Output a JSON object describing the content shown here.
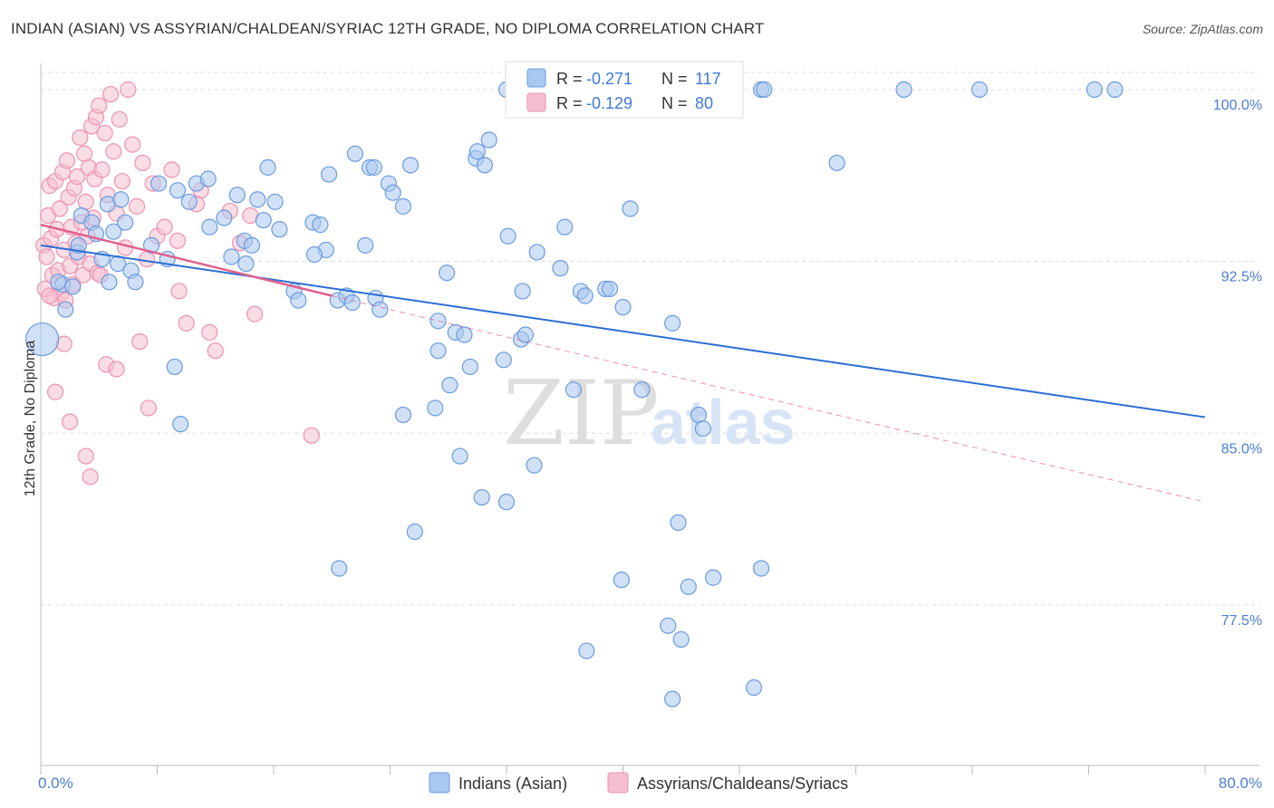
{
  "title": "INDIAN (ASIAN) VS ASSYRIAN/CHALDEAN/SYRIAC 12TH GRADE, NO DIPLOMA CORRELATION CHART",
  "source": "Source: ZipAtlas.com",
  "watermark": {
    "zip": "ZIP",
    "atlas": "atlas"
  },
  "colors": {
    "blue_fill": "#a9c8f0",
    "blue_stroke": "#6b9be0",
    "blue_line": "#2a6fd1",
    "pink_fill": "#f6bfd0",
    "pink_stroke": "#ee92b0",
    "pink_line": "#e0608c",
    "grid": "#dcdcdc",
    "tick_text": "#4a7fd6"
  },
  "legend": {
    "blue": {
      "r_label": "R = ",
      "r_value": "-0.271",
      "n_label": "N = ",
      "n_value": "117"
    },
    "pink": {
      "r_label": "R = ",
      "r_value": "-0.129",
      "n_label": "N = ",
      "n_value": "80"
    }
  },
  "chart_data": {
    "type": "scatter",
    "title": "INDIAN (ASIAN) VS ASSYRIAN/CHALDEAN/SYRIAC 12TH GRADE, NO DIPLOMA CORRELATION CHART",
    "xlabel": "",
    "ylabel": "12th Grade, No Diploma",
    "xlim": [
      0,
      80
    ],
    "ylim": [
      70.5,
      101.3
    ],
    "x_tick_labels": [
      "0.0%",
      "80.0%"
    ],
    "y_ticks": [
      77.5,
      85.0,
      92.5,
      100.0
    ],
    "y_tick_labels": [
      "77.5%",
      "85.0%",
      "92.5%",
      "100.0%"
    ],
    "grid": true,
    "legend_position": "bottom",
    "series": [
      {
        "name": "Indians (Asian)",
        "trend": {
          "x": [
            0,
            80
          ],
          "y": [
            93.2,
            85.7
          ],
          "style": "solid"
        },
        "points": [
          [
            0.1,
            89.1
          ],
          [
            1.5,
            91.5
          ],
          [
            2.5,
            92.9
          ],
          [
            2.8,
            94.5
          ],
          [
            3.5,
            94.2
          ],
          [
            3.8,
            93.7
          ],
          [
            4.2,
            92.6
          ],
          [
            4.6,
            95.0
          ],
          [
            5.5,
            95.2
          ],
          [
            5.3,
            92.4
          ],
          [
            6.2,
            92.1
          ],
          [
            6.5,
            91.6
          ],
          [
            5.8,
            94.2
          ],
          [
            2.6,
            93.2
          ],
          [
            1.7,
            90.4
          ],
          [
            7.6,
            93.2
          ],
          [
            8.7,
            92.6
          ],
          [
            9.4,
            95.6
          ],
          [
            10.2,
            95.1
          ],
          [
            10.7,
            95.9
          ],
          [
            11.5,
            96.1
          ],
          [
            11.6,
            94.0
          ],
          [
            12.6,
            94.4
          ],
          [
            13.1,
            92.7
          ],
          [
            13.5,
            95.4
          ],
          [
            14.0,
            93.4
          ],
          [
            14.5,
            93.2
          ],
          [
            14.9,
            95.2
          ],
          [
            15.3,
            94.3
          ],
          [
            15.6,
            96.6
          ],
          [
            16.4,
            93.9
          ],
          [
            16.1,
            95.1
          ],
          [
            17.4,
            91.2
          ],
          [
            17.7,
            90.8
          ],
          [
            18.7,
            94.2
          ],
          [
            19.2,
            94.1
          ],
          [
            19.6,
            93.0
          ],
          [
            19.8,
            96.3
          ],
          [
            20.4,
            90.8
          ],
          [
            21.0,
            91.0
          ],
          [
            21.4,
            90.7
          ],
          [
            21.6,
            97.2
          ],
          [
            22.3,
            93.2
          ],
          [
            22.6,
            96.6
          ],
          [
            22.9,
            96.6
          ],
          [
            23.0,
            90.9
          ],
          [
            23.9,
            95.9
          ],
          [
            24.2,
            95.5
          ],
          [
            24.9,
            94.9
          ],
          [
            25.4,
            96.7
          ],
          [
            27.3,
            89.9
          ],
          [
            27.3,
            88.6
          ],
          [
            27.9,
            92.0
          ],
          [
            28.5,
            89.4
          ],
          [
            29.1,
            89.3
          ],
          [
            29.5,
            87.9
          ],
          [
            29.9,
            97.0
          ],
          [
            30.0,
            97.3
          ],
          [
            30.5,
            96.7
          ],
          [
            30.8,
            97.8
          ],
          [
            31.8,
            88.2
          ],
          [
            32.1,
            93.6
          ],
          [
            33.0,
            89.1
          ],
          [
            33.3,
            89.3
          ],
          [
            34.1,
            92.9
          ],
          [
            35.7,
            92.2
          ],
          [
            36.0,
            94.0
          ],
          [
            37.1,
            91.2
          ],
          [
            37.4,
            91.0
          ],
          [
            38.8,
            91.3
          ],
          [
            39.1,
            91.3
          ],
          [
            40.5,
            94.8
          ],
          [
            41.3,
            86.9
          ],
          [
            43.4,
            89.8
          ],
          [
            45.2,
            85.8
          ],
          [
            45.5,
            85.2
          ],
          [
            54.7,
            96.8
          ],
          [
            59.3,
            100.0
          ],
          [
            64.5,
            100.0
          ],
          [
            72.4,
            100.0
          ],
          [
            73.8,
            100.0
          ],
          [
            9.2,
            87.9
          ],
          [
            9.6,
            85.4
          ],
          [
            27.1,
            86.1
          ],
          [
            28.1,
            87.1
          ],
          [
            28.8,
            84.0
          ],
          [
            24.9,
            85.8
          ],
          [
            36.6,
            86.9
          ],
          [
            33.9,
            83.6
          ],
          [
            30.3,
            82.2
          ],
          [
            32.0,
            82.0
          ],
          [
            25.7,
            80.7
          ],
          [
            20.5,
            79.1
          ],
          [
            39.9,
            78.6
          ],
          [
            43.8,
            81.1
          ],
          [
            44.5,
            78.3
          ],
          [
            46.2,
            78.7
          ],
          [
            49.5,
            79.1
          ],
          [
            44.0,
            76.0
          ],
          [
            43.1,
            76.6
          ],
          [
            37.5,
            75.5
          ],
          [
            49.0,
            73.9
          ],
          [
            43.4,
            73.4
          ],
          [
            32.0,
            100.0
          ],
          [
            49.5,
            100.0
          ],
          [
            49.7,
            100.0
          ],
          [
            5.0,
            93.8
          ],
          [
            18.8,
            92.8
          ],
          [
            23.3,
            90.4
          ],
          [
            14.1,
            92.4
          ],
          [
            40.0,
            90.5
          ],
          [
            33.1,
            91.2
          ],
          [
            8.1,
            95.9
          ],
          [
            2.2,
            91.4
          ],
          [
            4.7,
            91.6
          ],
          [
            1.2,
            91.6
          ]
        ]
      },
      {
        "name": "Assyrians/Chaldeans/Syriacs",
        "trend": {
          "x": [
            0,
            20
          ],
          "y": [
            94.1,
            91.0
          ],
          "style": "solid"
        },
        "trend_extension": {
          "x": [
            20,
            80
          ],
          "y": [
            91.0,
            82.0
          ],
          "style": "dashed"
        },
        "points": [
          [
            0.2,
            93.2
          ],
          [
            0.3,
            91.3
          ],
          [
            0.4,
            92.7
          ],
          [
            0.5,
            94.5
          ],
          [
            0.6,
            95.8
          ],
          [
            0.7,
            93.5
          ],
          [
            0.8,
            91.9
          ],
          [
            0.9,
            90.9
          ],
          [
            1.0,
            96.0
          ],
          [
            1.1,
            93.9
          ],
          [
            1.2,
            92.1
          ],
          [
            1.3,
            94.8
          ],
          [
            1.4,
            91.1
          ],
          [
            1.5,
            96.4
          ],
          [
            1.6,
            93.0
          ],
          [
            1.7,
            90.8
          ],
          [
            1.8,
            96.9
          ],
          [
            1.9,
            95.3
          ],
          [
            2.0,
            92.3
          ],
          [
            2.1,
            94.0
          ],
          [
            2.2,
            91.5
          ],
          [
            2.3,
            95.7
          ],
          [
            2.4,
            93.3
          ],
          [
            2.5,
            96.2
          ],
          [
            2.6,
            92.7
          ],
          [
            2.7,
            97.9
          ],
          [
            2.8,
            94.2
          ],
          [
            2.9,
            91.9
          ],
          [
            3.0,
            97.2
          ],
          [
            3.1,
            95.1
          ],
          [
            3.2,
            93.6
          ],
          [
            3.3,
            96.6
          ],
          [
            3.4,
            92.4
          ],
          [
            3.5,
            98.4
          ],
          [
            3.6,
            94.4
          ],
          [
            3.7,
            96.1
          ],
          [
            3.8,
            98.8
          ],
          [
            3.9,
            92.0
          ],
          [
            4.0,
            99.3
          ],
          [
            4.2,
            96.5
          ],
          [
            4.4,
            98.1
          ],
          [
            4.6,
            95.4
          ],
          [
            4.8,
            99.8
          ],
          [
            5.0,
            97.3
          ],
          [
            5.2,
            94.6
          ],
          [
            5.4,
            98.7
          ],
          [
            5.6,
            96.0
          ],
          [
            5.8,
            93.1
          ],
          [
            6.0,
            100.0
          ],
          [
            6.3,
            97.6
          ],
          [
            6.6,
            94.9
          ],
          [
            7.0,
            96.8
          ],
          [
            7.3,
            92.6
          ],
          [
            7.7,
            95.9
          ],
          [
            8.0,
            93.6
          ],
          [
            8.5,
            94.0
          ],
          [
            9.0,
            96.5
          ],
          [
            9.4,
            93.4
          ],
          [
            10.0,
            89.8
          ],
          [
            11.0,
            95.6
          ],
          [
            12.0,
            88.6
          ],
          [
            13.0,
            94.7
          ],
          [
            13.7,
            93.3
          ],
          [
            14.4,
            94.5
          ],
          [
            4.5,
            88.0
          ],
          [
            5.2,
            87.8
          ],
          [
            6.8,
            89.0
          ],
          [
            1.0,
            86.8
          ],
          [
            2.0,
            85.5
          ],
          [
            3.1,
            84.0
          ],
          [
            3.4,
            83.1
          ],
          [
            1.6,
            88.9
          ],
          [
            0.6,
            91.0
          ],
          [
            11.6,
            89.4
          ],
          [
            18.6,
            84.9
          ],
          [
            10.7,
            95.0
          ],
          [
            9.5,
            91.2
          ],
          [
            14.7,
            90.2
          ],
          [
            4.1,
            91.9
          ],
          [
            7.4,
            86.1
          ]
        ]
      }
    ]
  }
}
